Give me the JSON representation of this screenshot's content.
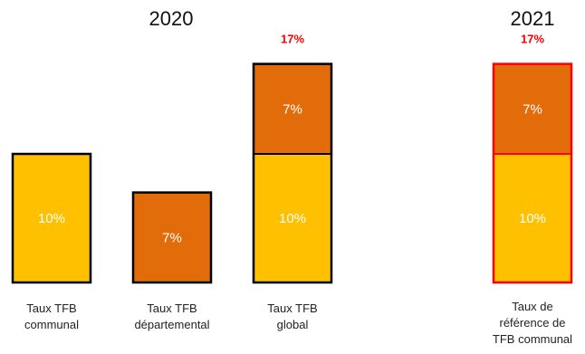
{
  "chart_data": {
    "type": "bar",
    "stacked": true,
    "groups": [
      {
        "year": "2020",
        "categories": [
          "0",
          "1",
          "2"
        ]
      },
      {
        "year": "2021",
        "categories": [
          "3"
        ]
      }
    ],
    "categories": [
      {
        "label_lines": [
          "Taux TFB",
          "communal"
        ],
        "segments": [
          {
            "value": 10,
            "label": "10%",
            "color": "#ffc000"
          }
        ],
        "total_label": "",
        "outline": "#000000"
      },
      {
        "label_lines": [
          "Taux TFB",
          "départemental"
        ],
        "segments": [
          {
            "value": 7,
            "label": "7%",
            "color": "#e36c0a"
          }
        ],
        "total_label": "",
        "outline": "#000000"
      },
      {
        "label_lines": [
          "Taux TFB",
          "global"
        ],
        "segments": [
          {
            "value": 10,
            "label": "10%",
            "color": "#ffc000"
          },
          {
            "value": 7,
            "label": "7%",
            "color": "#e36c0a"
          }
        ],
        "total_label": "17%",
        "outline": "#000000"
      },
      {
        "label_lines": [
          "Taux de",
          "référence de",
          "TFB communal"
        ],
        "segments": [
          {
            "value": 10,
            "label": "10%",
            "color": "#ffc000"
          },
          {
            "value": 7,
            "label": "7%",
            "color": "#e36c0a"
          }
        ],
        "total_label": "17%",
        "outline": "#ff0000"
      }
    ],
    "years": [
      "2020",
      "2021"
    ],
    "ylim": [
      0,
      17
    ],
    "colors": {
      "communal": "#ffc000",
      "departemental": "#e36c0a",
      "total_label": "#ff0000"
    }
  }
}
